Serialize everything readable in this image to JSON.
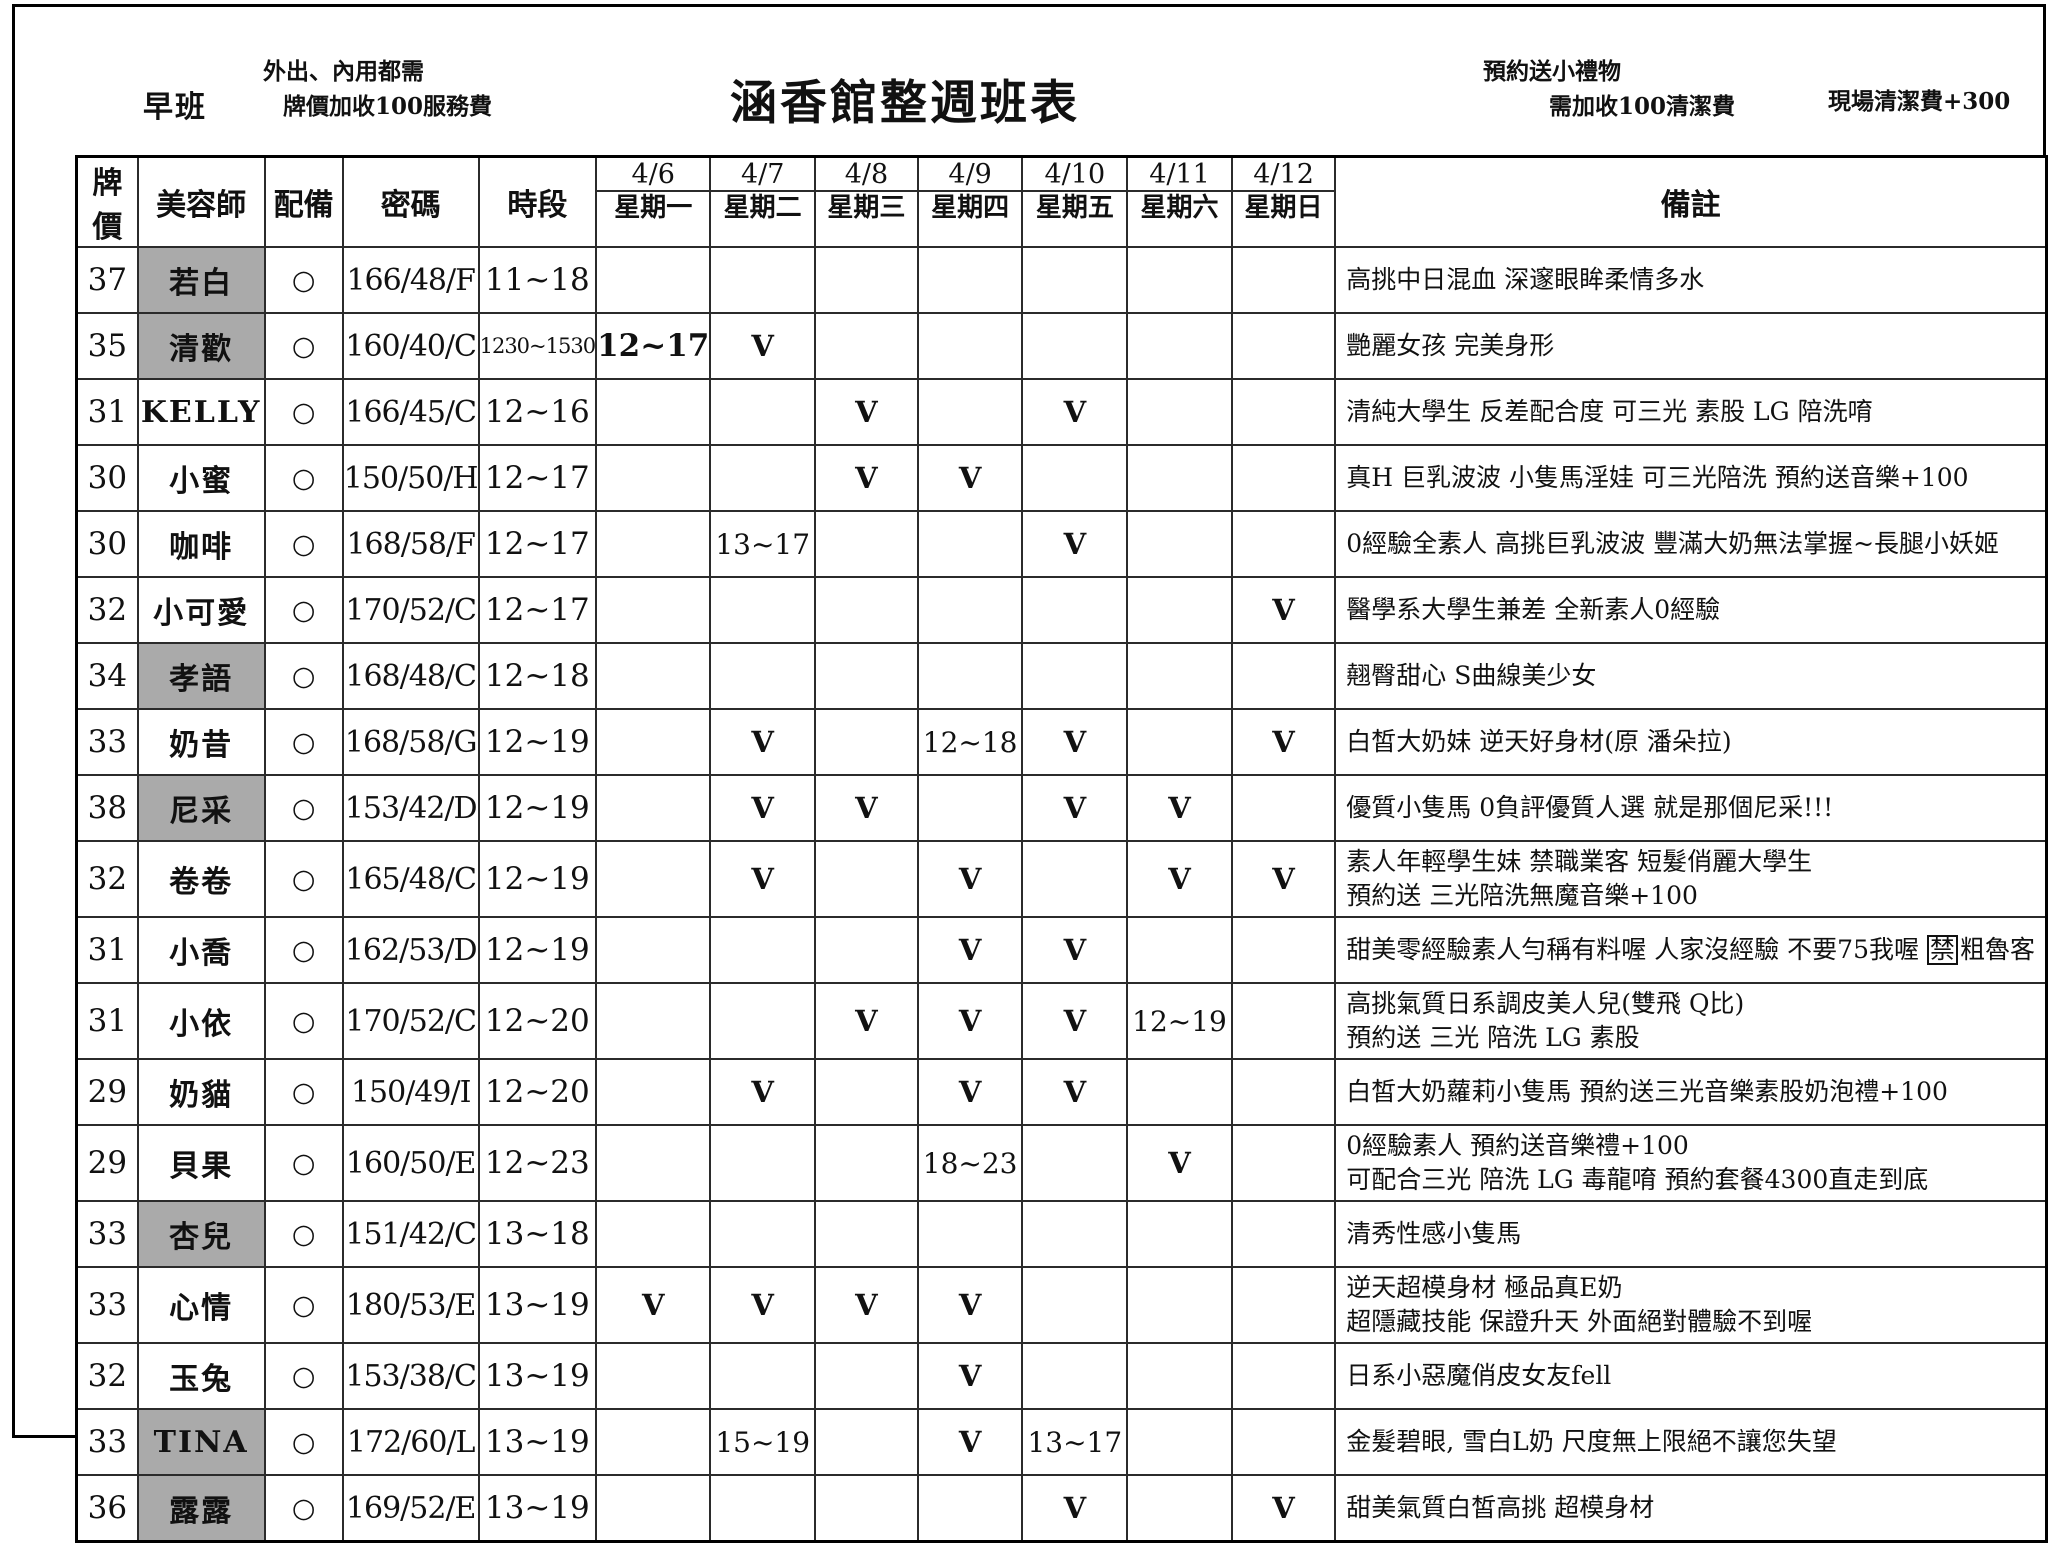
{
  "header": {
    "shift": "早班",
    "note_left": [
      "外出、內用都需",
      "牌價加收100服務費"
    ],
    "title": "涵香館整週班表",
    "note_right": [
      "預約送小禮物",
      "需加收100清潔費"
    ],
    "note_site_fee": "現場清潔費+300"
  },
  "table": {
    "columns": [
      "牌價",
      "美容師",
      "配備",
      "密碼",
      "時段"
    ],
    "remarks_header": "備註",
    "days": [
      {
        "date": "4/6",
        "weekday": "星期一"
      },
      {
        "date": "4/7",
        "weekday": "星期二"
      },
      {
        "date": "4/8",
        "weekday": "星期三"
      },
      {
        "date": "4/9",
        "weekday": "星期四"
      },
      {
        "date": "4/10",
        "weekday": "星期五"
      },
      {
        "date": "4/11",
        "weekday": "星期六"
      },
      {
        "date": "4/12",
        "weekday": "星期日"
      }
    ],
    "rows": [
      {
        "price": "37",
        "name": "若白",
        "highlight": true,
        "equip": "○",
        "code": "166/48/F",
        "time": "11~18",
        "days": [
          "",
          "",
          "",
          "",
          "",
          "",
          ""
        ],
        "remarks": [
          "高挑中日混血 深邃眼眸柔情多水"
        ]
      },
      {
        "price": "35",
        "name": "清歡",
        "highlight": true,
        "equip": "○",
        "code": "160/40/C",
        "time": "1230~1530",
        "time_small": true,
        "days": [
          {
            "t": "12~17",
            "bold": true
          },
          "V",
          "",
          "",
          "",
          "",
          ""
        ],
        "remarks": [
          "艷麗女孩 完美身形"
        ]
      },
      {
        "price": "31",
        "name": "KELLY",
        "highlight": false,
        "equip": "○",
        "code": "166/45/C",
        "time": "12~16",
        "days": [
          "",
          "",
          "V",
          "",
          "V",
          "",
          ""
        ],
        "remarks": [
          "清純大學生 反差配合度 可三光 素股 LG 陪洗唷"
        ]
      },
      {
        "price": "30",
        "name": "小蜜",
        "highlight": false,
        "equip": "○",
        "code": "150/50/H",
        "time": "12~17",
        "days": [
          "",
          "",
          "V",
          "V",
          "",
          "",
          ""
        ],
        "remarks": [
          "真H 巨乳波波 小隻馬淫娃 可三光陪洗 預約送音樂+100"
        ]
      },
      {
        "price": "30",
        "name": "咖啡",
        "highlight": false,
        "equip": "○",
        "code": "168/58/F",
        "time": "12~17",
        "days": [
          "",
          "13~17",
          "",
          "",
          "V",
          "",
          ""
        ],
        "remarks": [
          "0經驗全素人 高挑巨乳波波 豐滿大奶無法掌握~長腿小妖姬"
        ]
      },
      {
        "price": "32",
        "name": "小可愛",
        "highlight": false,
        "equip": "○",
        "code": "170/52/C",
        "time": "12~17",
        "days": [
          "",
          "",
          "",
          "",
          "",
          "",
          "V"
        ],
        "remarks": [
          "醫學系大學生兼差 全新素人0經驗"
        ]
      },
      {
        "price": "34",
        "name": "孝語",
        "highlight": true,
        "equip": "○",
        "code": "168/48/C",
        "time": "12~18",
        "days": [
          "",
          "",
          "",
          "",
          "",
          "",
          ""
        ],
        "remarks": [
          "翹臀甜心 S曲線美少女"
        ]
      },
      {
        "price": "33",
        "name": "奶昔",
        "highlight": false,
        "equip": "○",
        "code": "168/58/G",
        "time": "12~19",
        "days": [
          "",
          "V",
          "",
          "12~18",
          "V",
          "",
          "V"
        ],
        "remarks": [
          "白皙大奶妹 逆天好身材(原 潘朵拉)"
        ]
      },
      {
        "price": "38",
        "name": "尼采",
        "highlight": true,
        "equip": "○",
        "code": "153/42/D",
        "time": "12~19",
        "days": [
          "",
          "V",
          "V",
          "",
          "V",
          "V",
          ""
        ],
        "remarks": [
          "優質小隻馬 0負評優質人選 就是那個尼采!!!"
        ]
      },
      {
        "price": "32",
        "name": "卷卷",
        "highlight": false,
        "equip": "○",
        "code": "165/48/C",
        "time": "12~19",
        "days": [
          "",
          "V",
          "",
          "V",
          "",
          "V",
          "V"
        ],
        "remarks": [
          "素人年輕學生妹 禁職業客 短髮俏麗大學生",
          "預約送 三光陪洗無魔音樂+100"
        ]
      },
      {
        "price": "31",
        "name": "小喬",
        "highlight": false,
        "equip": "○",
        "code": "162/53/D",
        "time": "12~19",
        "days": [
          "",
          "",
          "",
          "V",
          "V",
          "",
          ""
        ],
        "remarks": [
          {
            "nowrap": true,
            "segments": [
              {
                "t": "甜美零經驗素人勻稱有料喔 人家沒經驗 不要75我喔 "
              },
              {
                "t": "禁",
                "boxed": true
              },
              {
                "t": "粗魯客"
              }
            ]
          }
        ]
      },
      {
        "price": "31",
        "name": "小依",
        "highlight": false,
        "equip": "○",
        "code": "170/52/C",
        "time": "12~20",
        "days": [
          "",
          "",
          "V",
          "V",
          "V",
          "12~19",
          ""
        ],
        "remarks": [
          "高挑氣質日系調皮美人兒(雙飛 Q比)",
          "預約送 三光 陪洗 LG 素股"
        ]
      },
      {
        "price": "29",
        "name": "奶貓",
        "highlight": false,
        "equip": "○",
        "code": "150/49/I",
        "time": "12~20",
        "days": [
          "",
          "V",
          "",
          "V",
          "V",
          "",
          ""
        ],
        "remarks": [
          "白皙大奶蘿莉小隻馬 預約送三光音樂素股奶泡禮+100"
        ]
      },
      {
        "price": "29",
        "name": "貝果",
        "highlight": false,
        "equip": "○",
        "code": "160/50/E",
        "time": "12~23",
        "days": [
          "",
          "",
          "",
          "18~23",
          "",
          "V",
          ""
        ],
        "remarks": [
          "0經驗素人 預約送音樂禮+100",
          "可配合三光 陪洗 LG 毒龍唷 預約套餐4300直走到底"
        ]
      },
      {
        "price": "33",
        "name": "杏兒",
        "highlight": true,
        "equip": "○",
        "code": "151/42/C",
        "time": "13~18",
        "days": [
          "",
          "",
          "",
          "",
          "",
          "",
          ""
        ],
        "remarks": [
          "清秀性感小隻馬"
        ]
      },
      {
        "price": "33",
        "name": "心情",
        "highlight": false,
        "equip": "○",
        "code": "180/53/E",
        "time": "13~19",
        "days": [
          "V",
          "V",
          "V",
          "V",
          "",
          "",
          ""
        ],
        "remarks": [
          "逆天超模身材 極品真E奶",
          "超隱藏技能 保證升天 外面絕對體驗不到喔"
        ]
      },
      {
        "price": "32",
        "name": "玉兔",
        "highlight": false,
        "equip": "○",
        "code": "153/38/C",
        "time": "13~19",
        "days": [
          "",
          "",
          "",
          "V",
          "",
          "",
          ""
        ],
        "remarks": [
          "日系小惡魔俏皮女友fell"
        ]
      },
      {
        "price": "33",
        "name": "TINA",
        "highlight": true,
        "equip": "○",
        "code": "172/60/L",
        "time": "13~19",
        "days": [
          "",
          "15~19",
          "",
          "V",
          "13~17",
          "",
          ""
        ],
        "remarks": [
          "金髮碧眼, 雪白L奶 尺度無上限絕不讓您失望"
        ]
      },
      {
        "price": "36",
        "name": "露露",
        "highlight": true,
        "equip": "○",
        "code": "169/52/E",
        "time": "13~19",
        "days": [
          "",
          "",
          "",
          "",
          "V",
          "",
          "V"
        ],
        "remarks": [
          "甜美氣質白皙高挑 超模身材"
        ]
      }
    ]
  }
}
